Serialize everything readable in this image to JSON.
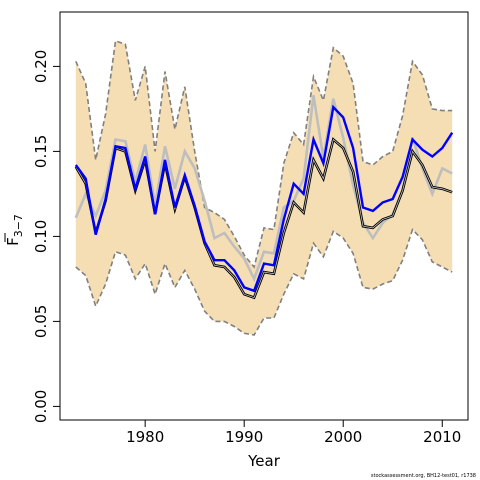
{
  "chart_data": {
    "type": "line",
    "xlabel": "Year",
    "ylabel_main": "F",
    "ylabel_sub": "3−7",
    "xlim": [
      1971.4,
      2012.6
    ],
    "ylim": [
      -0.008,
      0.232
    ],
    "grid": false,
    "x_ticks": [
      1980,
      1990,
      2000,
      2010
    ],
    "x_tick_labels": [
      "1980",
      "1990",
      "2000",
      "2010"
    ],
    "y_ticks": [
      0.0,
      0.05,
      0.1,
      0.15,
      0.2
    ],
    "y_tick_labels": [
      "0.00",
      "0.05",
      "0.10",
      "0.15",
      "0.20"
    ],
    "colors": {
      "band_fill": "#F5DEB3",
      "band_edge": "#808080",
      "blue": "#0000FF",
      "grey": "#BEBEBE",
      "black": "#000000"
    },
    "x": [
      1973,
      1974,
      1975,
      1976,
      1977,
      1978,
      1979,
      1980,
      1981,
      1982,
      1983,
      1984,
      1985,
      1986,
      1987,
      1988,
      1989,
      1990,
      1991,
      1992,
      1993,
      1994,
      1995,
      1996,
      1997,
      1998,
      1999,
      2000,
      2001,
      2002,
      2003,
      2004,
      2005,
      2006,
      2007,
      2008,
      2009,
      2010,
      2011
    ],
    "series": [
      {
        "role": "upper-bound",
        "values": [
          0.203,
          0.19,
          0.145,
          0.172,
          0.215,
          0.213,
          0.18,
          0.2,
          0.15,
          0.197,
          0.163,
          0.188,
          0.15,
          0.117,
          0.114,
          0.11,
          0.1,
          0.089,
          0.082,
          0.105,
          0.104,
          0.143,
          0.161,
          0.154,
          0.194,
          0.18,
          0.211,
          0.206,
          0.19,
          0.144,
          0.142,
          0.147,
          0.15,
          0.171,
          0.203,
          0.195,
          0.175,
          0.174,
          0.174
        ]
      },
      {
        "role": "lower-bound",
        "values": [
          0.082,
          0.077,
          0.059,
          0.072,
          0.091,
          0.089,
          0.075,
          0.084,
          0.066,
          0.084,
          0.07,
          0.08,
          0.069,
          0.056,
          0.05,
          0.05,
          0.047,
          0.043,
          0.042,
          0.052,
          0.052,
          0.066,
          0.078,
          0.075,
          0.096,
          0.088,
          0.103,
          0.099,
          0.09,
          0.07,
          0.069,
          0.072,
          0.074,
          0.086,
          0.104,
          0.098,
          0.085,
          0.082,
          0.079
        ]
      },
      {
        "role": "blue-line",
        "values": [
          0.142,
          0.134,
          0.101,
          0.122,
          0.153,
          0.152,
          0.128,
          0.147,
          0.113,
          0.145,
          0.117,
          0.136,
          0.118,
          0.097,
          0.086,
          0.086,
          0.08,
          0.07,
          0.068,
          0.084,
          0.083,
          0.11,
          0.131,
          0.125,
          0.157,
          0.143,
          0.176,
          0.17,
          0.152,
          0.117,
          0.115,
          0.12,
          0.122,
          0.135,
          0.157,
          0.151,
          0.147,
          0.152,
          0.161
        ]
      },
      {
        "role": "grey-line",
        "values": [
          0.111,
          0.125,
          0.112,
          0.127,
          0.157,
          0.156,
          0.132,
          0.154,
          0.118,
          0.153,
          0.128,
          0.15,
          0.14,
          0.121,
          0.099,
          0.102,
          0.094,
          0.087,
          0.075,
          0.091,
          0.09,
          0.117,
          0.121,
          0.134,
          0.183,
          0.146,
          0.181,
          0.158,
          0.13,
          0.108,
          0.099,
          0.108,
          0.113,
          0.127,
          0.158,
          0.14,
          0.125,
          0.14,
          0.137
        ]
      },
      {
        "role": "black-line",
        "values": [
          0.141,
          0.131,
          0.102,
          0.121,
          0.152,
          0.15,
          0.127,
          0.145,
          0.113,
          0.143,
          0.116,
          0.135,
          0.117,
          0.096,
          0.083,
          0.082,
          0.076,
          0.066,
          0.064,
          0.079,
          0.078,
          0.102,
          0.12,
          0.114,
          0.145,
          0.134,
          0.157,
          0.152,
          0.138,
          0.106,
          0.105,
          0.11,
          0.112,
          0.127,
          0.15,
          0.142,
          0.129,
          0.128,
          0.126
        ]
      }
    ]
  },
  "footer": {
    "credit": "stockassessment.org, BH12-test01, r1738"
  }
}
